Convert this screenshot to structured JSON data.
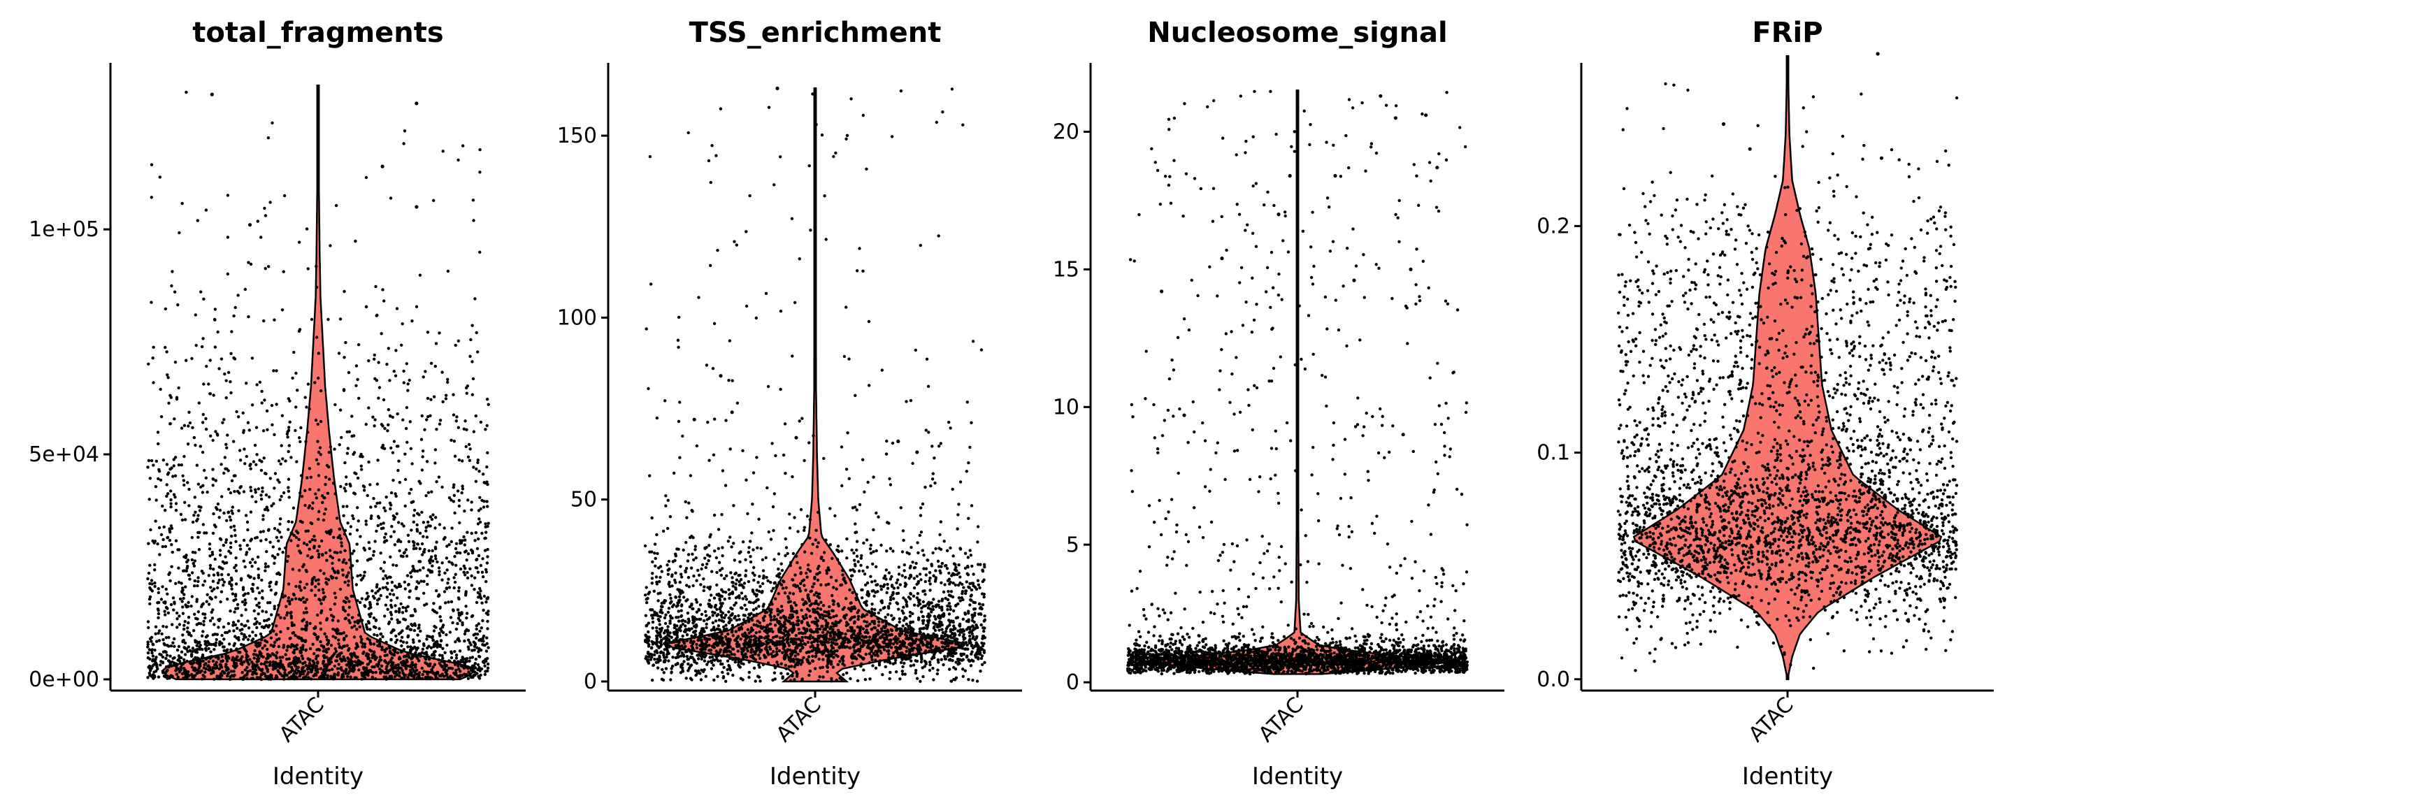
{
  "chart_data": [
    {
      "type": "violin",
      "title": "total_fragments",
      "xlabel": "Identity",
      "ylabel": "",
      "categories": [
        "ATAC"
      ],
      "fill_color": "#F8766D",
      "ylim": [
        -2500,
        137000
      ],
      "yticks": [
        0,
        50000,
        100000
      ],
      "ytick_labels": [
        "0e+00",
        "5e+04",
        "1e+05"
      ],
      "distribution": {
        "min": 0,
        "max": 132000,
        "median": 17000,
        "mode": 2000,
        "density": [
          [
            0,
            0.9
          ],
          [
            1500,
            1.0
          ],
          [
            3000,
            0.95
          ],
          [
            6000,
            0.55
          ],
          [
            10000,
            0.3
          ],
          [
            20000,
            0.22
          ],
          [
            30000,
            0.2
          ],
          [
            35000,
            0.14
          ],
          [
            45000,
            0.1
          ],
          [
            55000,
            0.07
          ],
          [
            65000,
            0.045
          ],
          [
            75000,
            0.03
          ],
          [
            85000,
            0.015
          ],
          [
            95000,
            0.01
          ],
          [
            110000,
            0.005
          ],
          [
            132000,
            0.003
          ]
        ]
      },
      "n_points": 3200,
      "outliers": [
        [
          -0.28,
          130000
        ],
        [
          0.26,
          128000
        ],
        [
          0.17,
          114000
        ],
        [
          0.26,
          105000
        ],
        [
          -0.18,
          101000
        ]
      ]
    },
    {
      "type": "violin",
      "title": "TSS_enrichment",
      "xlabel": "Identity",
      "ylabel": "",
      "categories": [
        "ATAC"
      ],
      "fill_color": "#F8766D",
      "ylim": [
        -2.5,
        170
      ],
      "yticks": [
        0,
        50,
        100,
        150
      ],
      "ytick_labels": [
        "0",
        "50",
        "100",
        "150"
      ],
      "distribution": {
        "min": 0,
        "max": 163,
        "median": 11,
        "mode": 10,
        "density": [
          [
            0,
            0.2
          ],
          [
            3,
            0.12
          ],
          [
            6,
            0.45
          ],
          [
            10,
            1.0
          ],
          [
            14,
            0.55
          ],
          [
            20,
            0.3
          ],
          [
            28,
            0.22
          ],
          [
            35,
            0.12
          ],
          [
            40,
            0.04
          ],
          [
            50,
            0.02
          ],
          [
            62,
            0.012
          ],
          [
            80,
            0.006
          ],
          [
            120,
            0.004
          ],
          [
            163,
            0.003
          ]
        ]
      },
      "n_points": 3200,
      "outliers": [
        [
          -0.25,
          84
        ],
        [
          -0.32,
          72
        ],
        [
          -0.22,
          74
        ],
        [
          0.22,
          66
        ],
        [
          0.27,
          63
        ],
        [
          -0.05,
          67
        ],
        [
          -0.1,
          163
        ]
      ]
    },
    {
      "type": "violin",
      "title": "Nucleosome_signal",
      "xlabel": "Identity",
      "ylabel": "",
      "categories": [
        "ATAC"
      ],
      "fill_color": "#F8766D",
      "ylim": [
        -0.3,
        22.5
      ],
      "yticks": [
        0,
        5,
        10,
        15,
        20
      ],
      "ytick_labels": [
        "0",
        "5",
        "10",
        "15",
        "20"
      ],
      "distribution": {
        "min": 0.3,
        "max": 21.5,
        "median": 0.7,
        "mode": 0.75,
        "density": [
          [
            0.3,
            0.15
          ],
          [
            0.5,
            0.6
          ],
          [
            0.75,
            1.0
          ],
          [
            1.0,
            0.55
          ],
          [
            1.3,
            0.15
          ],
          [
            1.8,
            0.02
          ],
          [
            3,
            0.008
          ],
          [
            6,
            0.005
          ],
          [
            12,
            0.004
          ],
          [
            21.5,
            0.003
          ]
        ]
      },
      "n_points": 3200,
      "outliers": [
        [
          0.22,
          21.3
        ],
        [
          0.26,
          20.5
        ],
        [
          0.34,
          20.6
        ],
        [
          0.37,
          18.7
        ],
        [
          -0.02,
          18.4
        ],
        [
          0.1,
          18.4
        ],
        [
          -0.36,
          14.2
        ],
        [
          -0.2,
          15.4
        ],
        [
          0.3,
          15.0
        ],
        [
          -0.05,
          17.0
        ],
        [
          0.15,
          14.6
        ],
        [
          -0.3,
          9.7
        ],
        [
          0.28,
          9.0
        ]
      ]
    },
    {
      "type": "violin",
      "title": "FRiP",
      "xlabel": "Identity",
      "ylabel": "",
      "categories": [
        "ATAC"
      ],
      "fill_color": "#F8766D",
      "ylim": [
        -0.005,
        0.272
      ],
      "yticks": [
        0.0,
        0.1,
        0.2
      ],
      "ytick_labels": [
        "0.0",
        "0.1",
        "0.2"
      ],
      "distribution": {
        "min": 0.0,
        "max": 0.275,
        "median": 0.068,
        "mode": 0.062,
        "density": [
          [
            0.0,
            0.0
          ],
          [
            0.01,
            0.03
          ],
          [
            0.02,
            0.08
          ],
          [
            0.03,
            0.2
          ],
          [
            0.045,
            0.55
          ],
          [
            0.062,
            1.0
          ],
          [
            0.075,
            0.7
          ],
          [
            0.09,
            0.42
          ],
          [
            0.11,
            0.28
          ],
          [
            0.13,
            0.22
          ],
          [
            0.15,
            0.2
          ],
          [
            0.17,
            0.18
          ],
          [
            0.19,
            0.14
          ],
          [
            0.205,
            0.08
          ],
          [
            0.22,
            0.03
          ],
          [
            0.24,
            0.012
          ],
          [
            0.26,
            0.006
          ],
          [
            0.275,
            0.003
          ]
        ]
      },
      "n_points": 3200,
      "outliers": [
        [
          0.24,
          0.276
        ],
        [
          -0.17,
          0.245
        ],
        [
          0.25,
          0.23
        ],
        [
          -0.1,
          0.234
        ]
      ]
    }
  ]
}
